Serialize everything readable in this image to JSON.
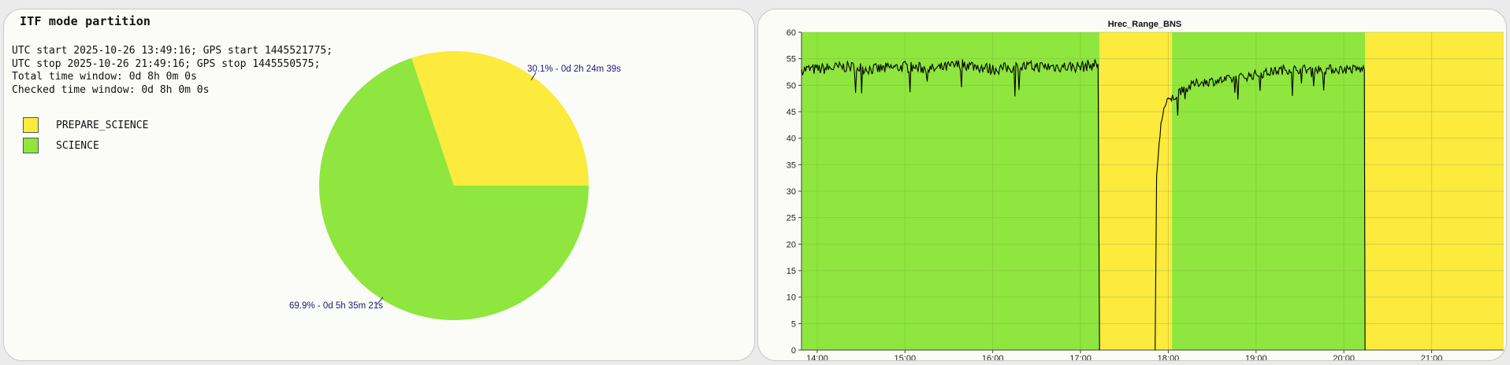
{
  "left_panel": {
    "title": "ITF mode partition",
    "info_lines": [
      "UTC start 2025-10-26 13:49:16; GPS start 1445521775;",
      "UTC stop 2025-10-26 21:49:16; GPS stop 1445550575;",
      "Total time window: 0d 8h 0m 0s",
      "Checked time window: 0d 8h 0m 0s"
    ],
    "legend": [
      {
        "label": "PREPARE_SCIENCE",
        "color": "#fcea3c"
      },
      {
        "label": "SCIENCE",
        "color": "#8ee63e"
      }
    ]
  },
  "chart_data": [
    {
      "type": "pie",
      "slices": [
        {
          "label": "PREPARE_SCIENCE",
          "value": 30.1,
          "text": "30.1% - 0d 2h 24m 39s",
          "color": "#fcea3c"
        },
        {
          "label": "SCIENCE",
          "value": 69.9,
          "text": "69.9% - 0d 5h 35m 21s",
          "color": "#8ee63e"
        }
      ]
    },
    {
      "type": "line",
      "title": "Hrec_Range_BNS",
      "xlabel": "",
      "ylabel": "",
      "x_range": [
        "13:49:16",
        "21:49:16"
      ],
      "ylim": [
        0,
        60
      ],
      "yticks": [
        0,
        5,
        10,
        15,
        20,
        25,
        30,
        35,
        40,
        45,
        50,
        55,
        60
      ],
      "xticks": [
        "14:00",
        "15:00",
        "16:00",
        "17:00",
        "18:00",
        "19:00",
        "20:00",
        "21:00"
      ],
      "grid": true,
      "background_bands": [
        {
          "state": "SCIENCE",
          "start": "13:49:16",
          "end": "17:13:00",
          "color": "#8ee63e"
        },
        {
          "state": "PREPARE_SCIENCE",
          "start": "17:13:00",
          "end": "18:02:30",
          "color": "#fcea3c"
        },
        {
          "state": "SCIENCE",
          "start": "18:02:30",
          "end": "20:14:30",
          "color": "#8ee63e"
        },
        {
          "state": "PREPARE_SCIENCE",
          "start": "20:14:30",
          "end": "21:49:16",
          "color": "#fcea3c"
        }
      ],
      "series": [
        {
          "color": "#000000",
          "segments": [
            {
              "points": [
                [
                  "13:49:16",
                  53
                ],
                [
                  "14:00",
                  53
                ],
                [
                  "14:20",
                  53.5
                ],
                [
                  "14:40",
                  53
                ],
                [
                  "15:00",
                  53.5
                ],
                [
                  "15:20",
                  53
                ],
                [
                  "15:40",
                  54
                ],
                [
                  "16:00",
                  53
                ],
                [
                  "16:20",
                  53.5
                ],
                [
                  "16:40",
                  53.5
                ],
                [
                  "17:00",
                  53.5
                ],
                [
                  "17:12",
                  54
                ]
              ],
              "noise": 1.1
            },
            {
              "points": [
                [
                  "17:12",
                  54
                ],
                [
                  "17:13",
                  0
                ]
              ],
              "noise": 0
            },
            {
              "points": [
                [
                  "17:51",
                  0
                ],
                [
                  "17:52",
                  33
                ],
                [
                  "17:53",
                  36
                ],
                [
                  "17:55",
                  43
                ],
                [
                  "17:57",
                  45.5
                ],
                [
                  "18:00",
                  47
                ],
                [
                  "18:10",
                  49
                ],
                [
                  "18:20",
                  50.5
                ],
                [
                  "18:40",
                  51
                ],
                [
                  "19:00",
                  52
                ],
                [
                  "19:20",
                  53
                ],
                [
                  "19:40",
                  53
                ],
                [
                  "20:00",
                  53
                ],
                [
                  "20:14",
                  53
                ]
              ],
              "noise": 0.9
            },
            {
              "points": [
                [
                  "20:14",
                  53
                ],
                [
                  "20:14:30",
                  0
                ]
              ],
              "noise": 0
            }
          ]
        }
      ]
    }
  ]
}
